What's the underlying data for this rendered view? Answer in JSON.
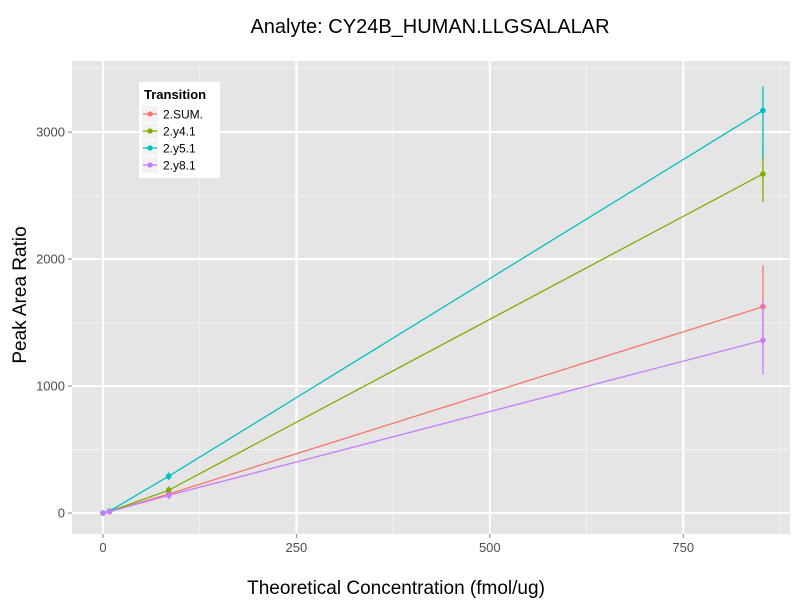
{
  "chart_data": {
    "type": "line",
    "title": "Analyte: CY24B_HUMAN.LLGSALALAR",
    "xlabel": "Theoretical Concentration (fmol/ug)",
    "ylabel": "Peak Area Ratio",
    "xlim": [
      -40,
      888
    ],
    "ylim": [
      -165,
      3560
    ],
    "x_ticks": [
      0,
      250,
      500,
      750
    ],
    "y_ticks": [
      0,
      1000,
      2000,
      3000
    ],
    "x_tick_labels": [
      "0",
      "250",
      "500",
      "750"
    ],
    "y_tick_labels": [
      "0",
      "1000",
      "2000",
      "3000"
    ],
    "grid": true,
    "legend": {
      "title": "Transition",
      "position": "top-left"
    },
    "series": [
      {
        "name": "2.SUM.",
        "color": "#F8766D",
        "x": [
          0,
          8.5,
          85,
          853
        ],
        "y": [
          0,
          12,
          150,
          1625
        ],
        "error": [
          [
            0,
            0
          ],
          [
            10,
            15
          ],
          [
            115,
            185
          ],
          [
            1320,
            1950
          ]
        ]
      },
      {
        "name": "2.y4.1",
        "color": "#7CAE00",
        "x": [
          0,
          8.5,
          85,
          853
        ],
        "y": [
          0,
          13,
          180,
          2670
        ],
        "error": [
          [
            0,
            0
          ],
          [
            11,
            16
          ],
          [
            150,
            210
          ],
          [
            2450,
            2900
          ]
        ]
      },
      {
        "name": "2.y5.1",
        "color": "#00BFC4",
        "x": [
          0,
          8.5,
          85,
          853
        ],
        "y": [
          0,
          15,
          290,
          3170
        ],
        "error": [
          [
            0,
            0
          ],
          [
            12,
            18
          ],
          [
            260,
            320
          ],
          [
            2800,
            3360
          ]
        ]
      },
      {
        "name": "2.y8.1",
        "color": "#C77CFF",
        "x": [
          0,
          8.5,
          85,
          853
        ],
        "y": [
          0,
          11,
          140,
          1360
        ],
        "error": [
          [
            0,
            0
          ],
          [
            9,
            14
          ],
          [
            110,
            170
          ],
          [
            1090,
            1680
          ]
        ]
      }
    ]
  }
}
